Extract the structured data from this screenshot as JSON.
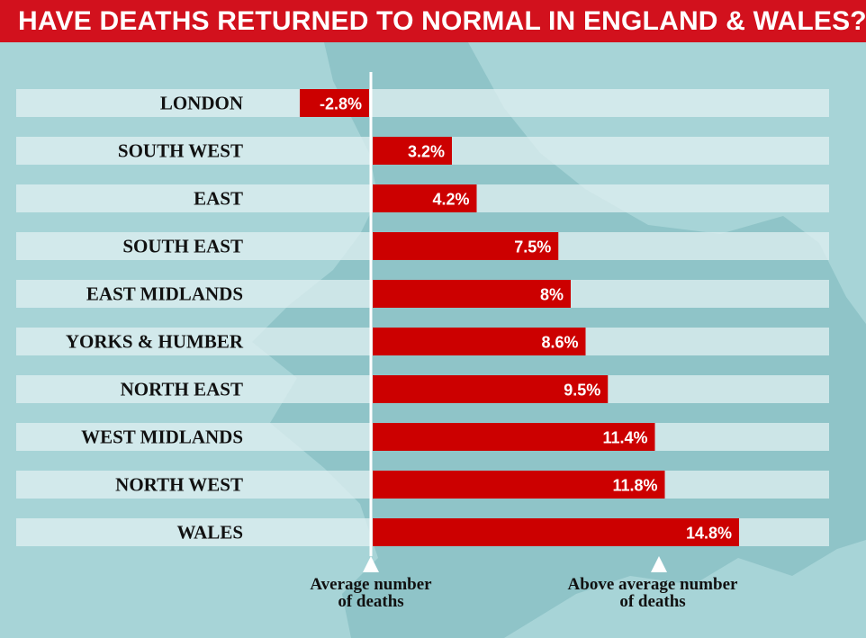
{
  "header": {
    "title": "HAVE DEATHS RETURNED TO NORMAL IN ENGLAND & WALES?"
  },
  "colors": {
    "bar": "#cc0000",
    "row_band": "#e3f1f2",
    "header_bg": "#d2111d",
    "background": "#a7d4d7",
    "map_land": "#8fc4c8"
  },
  "chart_data": {
    "type": "bar",
    "orientation": "horizontal",
    "title": "HAVE DEATHS RETURNED TO NORMAL IN ENGLAND & WALES?",
    "unit": "%",
    "categories": [
      "LONDON",
      "SOUTH WEST",
      "EAST",
      "SOUTH EAST",
      "EAST MIDLANDS",
      "YORKS & HUMBER",
      "NORTH EAST",
      "WEST MIDLANDS",
      "NORTH WEST",
      "WALES"
    ],
    "values": [
      -2.8,
      3.2,
      4.2,
      7.5,
      8,
      8.6,
      9.5,
      11.4,
      11.8,
      14.8
    ],
    "labels": [
      "-2.8%",
      "3.2%",
      "4.2%",
      "7.5%",
      "8%",
      "8.6%",
      "9.5%",
      "11.4%",
      "11.8%",
      "14.8%"
    ],
    "baseline": 0,
    "xlim": [
      -3,
      15
    ]
  },
  "footer": {
    "average_line1": "Average number",
    "average_line2": "of deaths",
    "above_line1": "Above average number",
    "above_line2": "of deaths"
  }
}
